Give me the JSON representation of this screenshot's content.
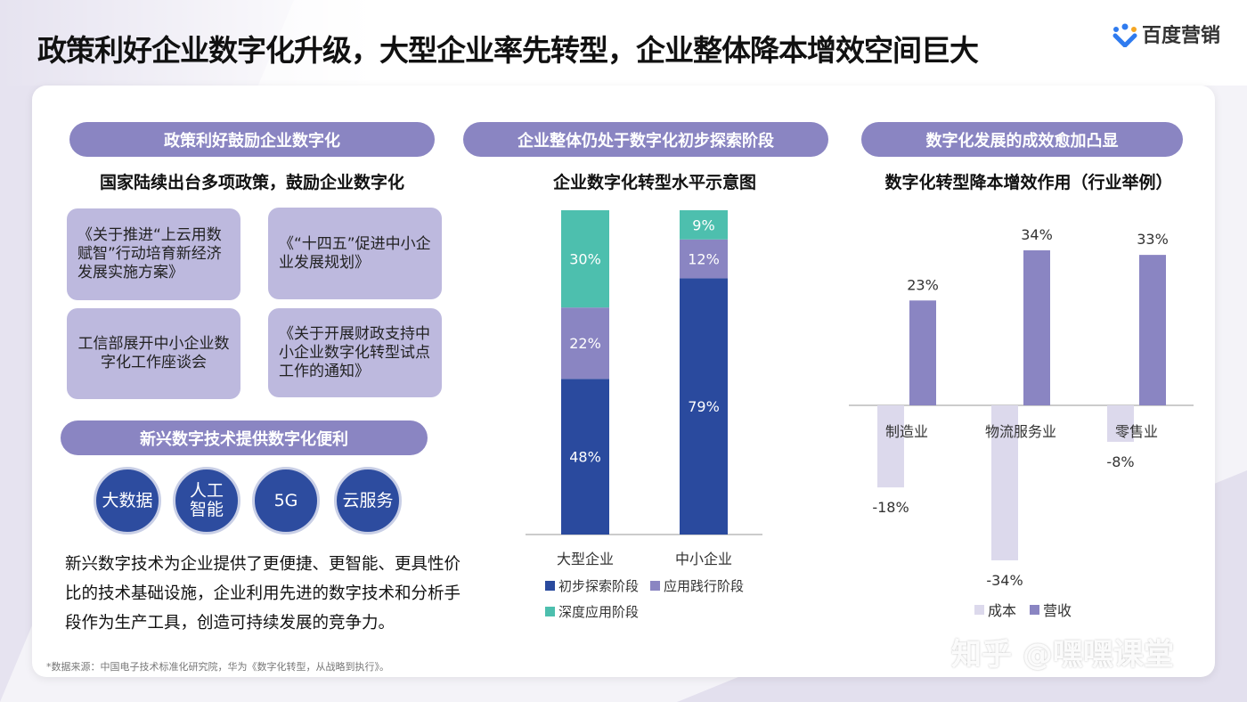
{
  "title": "政策利好企业数字化升级，大型企业率先转型，企业整体降本增效空间巨大",
  "logo": {
    "text": "百度营销"
  },
  "left": {
    "header": "政策利好鼓励企业数字化",
    "subtitle": "国家陆续出台多项政策，鼓励企业数字化",
    "policies": [
      "《关于推进“上云用数赋智”行动培育新经济发展实施方案》",
      "《“十四五”促进中小企业发展规划》",
      "工信部展开中小企业数字化工作座谈会",
      "《关于开展财政支持中小企业数字化转型试点工作的通知》"
    ],
    "header2": "新兴数字技术提供数字化便利",
    "techs": [
      "大数据",
      "人工智能",
      "5G",
      "云服务"
    ],
    "paragraph": "新兴数字技术为企业提供了更便捷、更智能、更具性价比的技术基础设施，企业利用先进的数字技术和分析手段作为生产工具，创造可持续发展的竞争力。"
  },
  "middle": {
    "header": "企业整体仍处于数字化初步探索阶段"
  },
  "right": {
    "header": "数字化发展的成效愈加凸显"
  },
  "source": "*数据来源：中国电子技术标准化研究院，华为《数字化转型，从战略到执行》。",
  "watermark": "知乎 @嘿嘿课堂",
  "colors": {
    "dark_blue": "#2a4a9e",
    "purple": "#8a85c2",
    "teal": "#4dbfae",
    "lavender": "#dcd9ec"
  },
  "chart_data": [
    {
      "type": "bar",
      "stacked": true,
      "title": "企业数字化转型水平示意图",
      "categories": [
        "大型企业",
        "中小企业"
      ],
      "series": [
        {
          "name": "初步探索阶段",
          "values": [
            48,
            79
          ],
          "color": "#2a4a9e"
        },
        {
          "name": "应用践行阶段",
          "values": [
            22,
            12
          ],
          "color": "#8a85c2"
        },
        {
          "name": "深度应用阶段",
          "values": [
            30,
            9
          ],
          "color": "#4dbfae"
        }
      ],
      "value_labels": [
        [
          "48%",
          "22%",
          "30%"
        ],
        [
          "79%",
          "12%",
          "9%"
        ]
      ],
      "ylim": [
        0,
        100
      ],
      "legend": "bottom"
    },
    {
      "type": "bar",
      "title": "数字化转型降本增效作用（行业举例）",
      "categories": [
        "制造业",
        "物流服务业",
        "零售业"
      ],
      "series": [
        {
          "name": "成本",
          "values": [
            -18,
            -34,
            -8
          ],
          "color": "#dcd9ec"
        },
        {
          "name": "营收",
          "values": [
            23,
            34,
            33
          ],
          "color": "#8a85c2"
        }
      ],
      "value_labels": [
        [
          "-18%",
          "-34%",
          "-8%"
        ],
        [
          "23%",
          "34%",
          "33%"
        ]
      ],
      "ylim": [
        -40,
        40
      ],
      "legend": "bottom"
    }
  ]
}
